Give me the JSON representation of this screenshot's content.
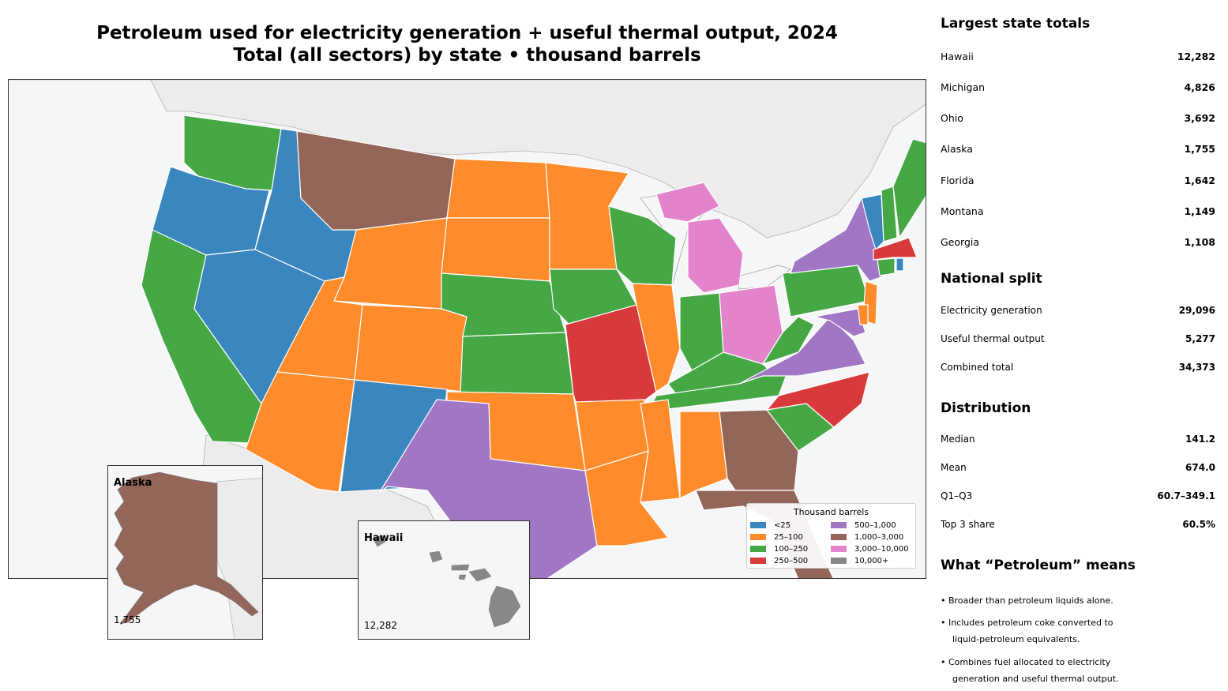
{
  "title": {
    "line1": "Petroleum used for electricity generation + useful thermal output, 2024",
    "line2": "Total (all sectors) by state • thousand barrels"
  },
  "insets": {
    "alaska": {
      "label": "Alaska",
      "value": "1,755",
      "color": "#94665a"
    },
    "hawaii": {
      "label": "Hawaii",
      "value": "12,282",
      "color": "#888888"
    }
  },
  "legend": {
    "title": "Thousand barrels",
    "items": [
      {
        "label": "<25",
        "color": "#3a86bf"
      },
      {
        "label": "25–100",
        "color": "#ff8b2b"
      },
      {
        "label": "100–250",
        "color": "#45a845"
      },
      {
        "label": "250–500",
        "color": "#d83a3b"
      },
      {
        "label": "500–1,000",
        "color": "#a176c4"
      },
      {
        "label": "1,000–3,000",
        "color": "#94665a"
      },
      {
        "label": "3,000–10,000",
        "color": "#e283cc"
      },
      {
        "label": "10,000+",
        "color": "#888888"
      }
    ]
  },
  "sidebar": {
    "largest": {
      "title": "Largest state totals",
      "rows": [
        {
          "label": "Hawaii",
          "value": "12,282"
        },
        {
          "label": "Michigan",
          "value": "4,826"
        },
        {
          "label": "Ohio",
          "value": "3,692"
        },
        {
          "label": "Alaska",
          "value": "1,755"
        },
        {
          "label": "Florida",
          "value": "1,642"
        },
        {
          "label": "Montana",
          "value": "1,149"
        },
        {
          "label": "Georgia",
          "value": "1,108"
        }
      ]
    },
    "split": {
      "title": "National split",
      "rows": [
        {
          "label": "Electricity generation",
          "value": "29,096"
        },
        {
          "label": "Useful thermal output",
          "value": "5,277"
        },
        {
          "label": "Combined total",
          "value": "34,373"
        }
      ]
    },
    "distribution": {
      "title": "Distribution",
      "rows": [
        {
          "label": "Median",
          "value": "141.2"
        },
        {
          "label": "Mean",
          "value": "674.0"
        },
        {
          "label": "Q1–Q3",
          "value": "60.7–349.1"
        },
        {
          "label": "Top 3 share",
          "value": "60.5%"
        }
      ]
    },
    "meaning": {
      "title": "What “Petroleum” means",
      "bullets": [
        "• Broader than petroleum liquids alone.",
        "• Includes petroleum coke converted to",
        "liquid-petroleum equivalents.",
        "• Combines fuel allocated to electricity",
        "generation and useful thermal output."
      ]
    }
  },
  "map_states": [
    {
      "name": "Washington",
      "color": "#45a845"
    },
    {
      "name": "Oregon",
      "color": "#3a86bf"
    },
    {
      "name": "California",
      "color": "#45a845"
    },
    {
      "name": "Idaho",
      "color": "#3a86bf"
    },
    {
      "name": "Nevada",
      "color": "#3a86bf"
    },
    {
      "name": "Montana",
      "color": "#94665a"
    },
    {
      "name": "Wyoming",
      "color": "#ff8b2b"
    },
    {
      "name": "Utah",
      "color": "#ff8b2b"
    },
    {
      "name": "Arizona",
      "color": "#ff8b2b"
    },
    {
      "name": "Colorado",
      "color": "#ff8b2b"
    },
    {
      "name": "New Mexico",
      "color": "#3a86bf"
    },
    {
      "name": "North Dakota",
      "color": "#ff8b2b"
    },
    {
      "name": "South Dakota",
      "color": "#ff8b2b"
    },
    {
      "name": "Nebraska",
      "color": "#45a845"
    },
    {
      "name": "Kansas",
      "color": "#45a845"
    },
    {
      "name": "Oklahoma",
      "color": "#ff8b2b"
    },
    {
      "name": "Texas",
      "color": "#a176c4"
    },
    {
      "name": "Minnesota",
      "color": "#ff8b2b"
    },
    {
      "name": "Iowa",
      "color": "#45a845"
    },
    {
      "name": "Missouri",
      "color": "#d83a3b"
    },
    {
      "name": "Arkansas",
      "color": "#ff8b2b"
    },
    {
      "name": "Louisiana",
      "color": "#ff8b2b"
    },
    {
      "name": "Wisconsin",
      "color": "#45a845"
    },
    {
      "name": "Illinois",
      "color": "#ff8b2b"
    },
    {
      "name": "Michigan",
      "color": "#e283cc"
    },
    {
      "name": "Indiana",
      "color": "#45a845"
    },
    {
      "name": "Ohio",
      "color": "#e283cc"
    },
    {
      "name": "Kentucky",
      "color": "#45a845"
    },
    {
      "name": "Tennessee",
      "color": "#45a845"
    },
    {
      "name": "Mississippi",
      "color": "#ff8b2b"
    },
    {
      "name": "Alabama",
      "color": "#ff8b2b"
    },
    {
      "name": "Georgia",
      "color": "#94665a"
    },
    {
      "name": "Florida",
      "color": "#94665a"
    },
    {
      "name": "South Carolina",
      "color": "#45a845"
    },
    {
      "name": "North Carolina",
      "color": "#d83a3b"
    },
    {
      "name": "Virginia",
      "color": "#a176c4"
    },
    {
      "name": "West Virginia",
      "color": "#45a845"
    },
    {
      "name": "Pennsylvania",
      "color": "#45a845"
    },
    {
      "name": "New York",
      "color": "#a176c4"
    },
    {
      "name": "New Jersey",
      "color": "#ff8b2b"
    },
    {
      "name": "Maryland",
      "color": "#a176c4"
    },
    {
      "name": "Delaware",
      "color": "#ff8b2b"
    },
    {
      "name": "Vermont",
      "color": "#3a86bf"
    },
    {
      "name": "New Hampshire",
      "color": "#45a845"
    },
    {
      "name": "Maine",
      "color": "#45a845"
    },
    {
      "name": "Massachusetts",
      "color": "#d83a3b"
    },
    {
      "name": "Connecticut",
      "color": "#45a845"
    },
    {
      "name": "Rhode Island",
      "color": "#3a86bf"
    }
  ]
}
